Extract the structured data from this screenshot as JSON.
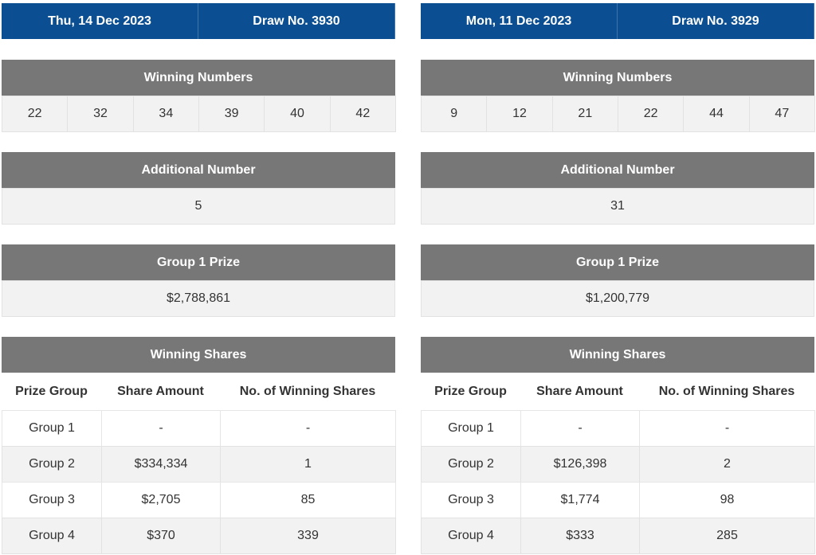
{
  "draws": [
    {
      "date": "Thu, 14 Dec 2023",
      "draw_no": "Draw No. 3930",
      "winning_numbers_title": "Winning Numbers",
      "winning_numbers": [
        "22",
        "32",
        "34",
        "39",
        "40",
        "42"
      ],
      "additional_title": "Additional Number",
      "additional_number": "5",
      "prize_title": "Group 1 Prize",
      "group1_prize": "$2,788,861",
      "shares_title": "Winning Shares",
      "shares_columns": [
        "Prize Group",
        "Share Amount",
        "No. of Winning Shares"
      ],
      "shares_rows": [
        [
          "Group 1",
          "-",
          "-"
        ],
        [
          "Group 2",
          "$334,334",
          "1"
        ],
        [
          "Group 3",
          "$2,705",
          "85"
        ],
        [
          "Group 4",
          "$370",
          "339"
        ]
      ]
    },
    {
      "date": "Mon, 11 Dec 2023",
      "draw_no": "Draw No. 3929",
      "winning_numbers_title": "Winning Numbers",
      "winning_numbers": [
        "9",
        "12",
        "21",
        "22",
        "44",
        "47"
      ],
      "additional_title": "Additional Number",
      "additional_number": "31",
      "prize_title": "Group 1 Prize",
      "group1_prize": "$1,200,779",
      "shares_title": "Winning Shares",
      "shares_columns": [
        "Prize Group",
        "Share Amount",
        "No. of Winning Shares"
      ],
      "shares_rows": [
        [
          "Group 1",
          "-",
          "-"
        ],
        [
          "Group 2",
          "$126,398",
          "2"
        ],
        [
          "Group 3",
          "$1,774",
          "98"
        ],
        [
          "Group 4",
          "$333",
          "285"
        ]
      ]
    }
  ]
}
